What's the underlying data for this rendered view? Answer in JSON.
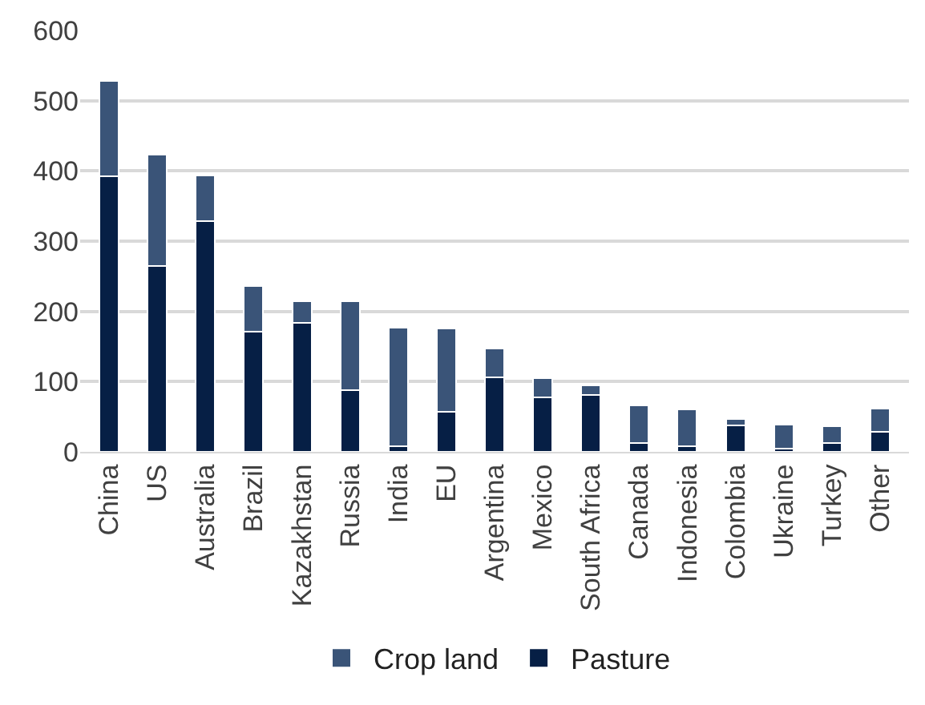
{
  "chart_data": {
    "type": "bar",
    "stacked": true,
    "categories": [
      "China",
      "US",
      "Australia",
      "Brazil",
      "Kazakhstan",
      "Russia",
      "India",
      "EU",
      "Argentina",
      "Mexico",
      "South Africa",
      "Canada",
      "Indonesia",
      "Colombia",
      "Ukraine",
      "Turkey",
      "Other"
    ],
    "series": [
      {
        "name": "Pasture",
        "color": "#061f45",
        "values": [
          392,
          265,
          329,
          171,
          184,
          88,
          8,
          57,
          106,
          78,
          81,
          13,
          8,
          38,
          5,
          13,
          28
        ]
      },
      {
        "name": "Crop land",
        "color": "#3a5478",
        "values": [
          136,
          158,
          64,
          65,
          31,
          126,
          169,
          119,
          41,
          27,
          14,
          53,
          52,
          9,
          34,
          23,
          34
        ]
      }
    ],
    "ylim": [
      0,
      600
    ],
    "yticks": [
      0,
      100,
      200,
      300,
      400,
      500,
      600
    ],
    "grid": "y",
    "legend": "bottom"
  }
}
